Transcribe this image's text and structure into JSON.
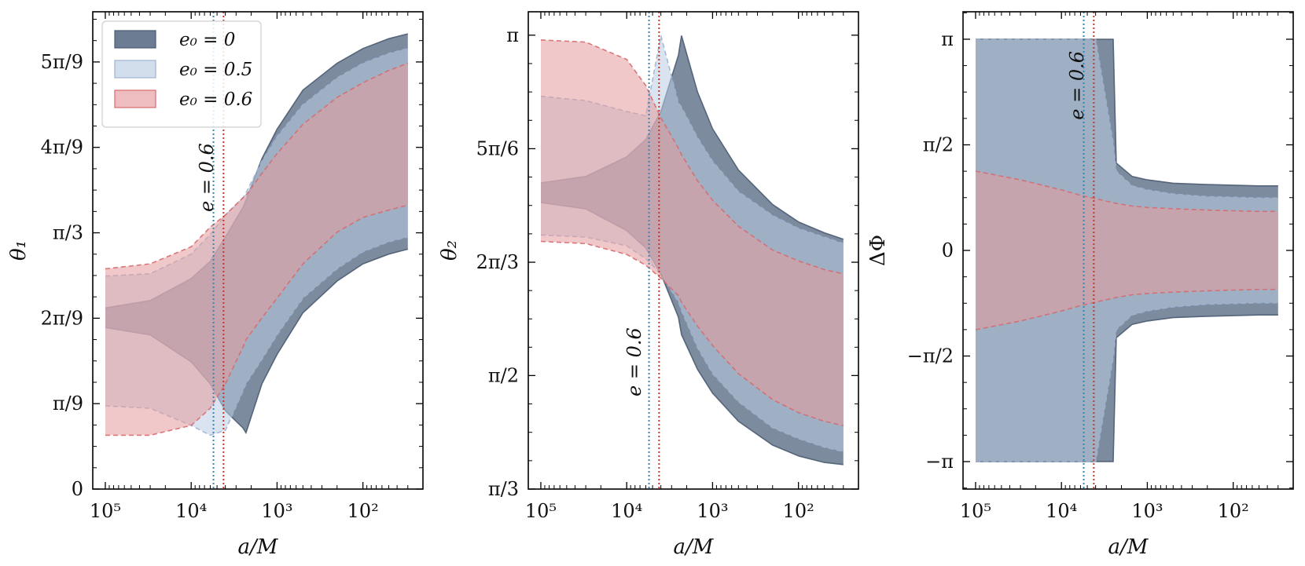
{
  "colors": {
    "e0_0": "#5c6e86",
    "e0_05": "#bccde3",
    "e0_06": "#e39a9c",
    "e0_0_edge": "#4b5c72",
    "e0_05_edge": "#9fb3d0",
    "e0_06_edge": "#d76a6f",
    "vline_blue": "#3a86b3",
    "vline_red": "#c0392b"
  },
  "legend": {
    "entries": [
      "e₀ = 0",
      "e₀ = 0.5",
      "e₀ = 0.6"
    ],
    "placement": "top-left of first panel"
  },
  "chart_data": [
    {
      "type": "area",
      "title": "",
      "xlabel": "a/M",
      "ylabel": "θ₁",
      "x_scale": "log, reversed",
      "xlim": [
        140000,
        20
      ],
      "ylim": [
        0,
        1.95
      ],
      "xticks": [
        100000,
        10000,
        1000,
        100
      ],
      "xtick_labels": [
        "10⁵",
        "10⁴",
        "10³",
        "10²"
      ],
      "yticks": [
        0,
        0.349,
        0.698,
        1.047,
        1.396,
        1.745
      ],
      "ytick_labels": [
        "0",
        "π/9",
        "2π/9",
        "π/3",
        "4π/9",
        "5π/9"
      ],
      "vlines": [
        {
          "x": 5500,
          "color": "blue"
        },
        {
          "x": 4200,
          "color": "red"
        }
      ],
      "annotation": "e = 0.6",
      "x": [
        100000,
        30000,
        10000,
        6000,
        4000,
        2500,
        2300,
        1500,
        1000,
        500,
        200,
        100,
        50,
        30
      ],
      "series": [
        {
          "name": "e₀ = 0",
          "upper": [
            0.74,
            0.77,
            0.86,
            0.93,
            1.03,
            1.15,
            1.18,
            1.35,
            1.47,
            1.63,
            1.74,
            1.8,
            1.84,
            1.86
          ],
          "lower": [
            0.66,
            0.63,
            0.52,
            0.43,
            0.32,
            0.25,
            0.23,
            0.43,
            0.55,
            0.72,
            0.85,
            0.92,
            0.96,
            0.98
          ]
        },
        {
          "name": "e₀ = 0.5",
          "upper": [
            0.87,
            0.88,
            0.96,
            1.04,
            1.12,
            1.19,
            1.21,
            1.34,
            1.44,
            1.57,
            1.68,
            1.74,
            1.78,
            1.8
          ],
          "lower": [
            0.34,
            0.33,
            0.26,
            0.22,
            0.24,
            0.4,
            0.43,
            0.53,
            0.63,
            0.78,
            0.9,
            0.97,
            1.01,
            1.03
          ]
        },
        {
          "name": "e₀ = 0.6",
          "upper": [
            0.9,
            0.92,
            0.99,
            1.07,
            1.12,
            1.19,
            1.2,
            1.29,
            1.37,
            1.49,
            1.6,
            1.66,
            1.71,
            1.74
          ],
          "lower": [
            0.22,
            0.22,
            0.26,
            0.33,
            0.43,
            0.58,
            0.61,
            0.7,
            0.78,
            0.92,
            1.05,
            1.11,
            1.14,
            1.16
          ]
        }
      ]
    },
    {
      "type": "area",
      "title": "",
      "xlabel": "a/M",
      "ylabel": "θ₂",
      "x_scale": "log, reversed",
      "xlim": [
        140000,
        20
      ],
      "ylim": [
        1.047,
        3.25
      ],
      "xticks": [
        100000,
        10000,
        1000,
        100
      ],
      "xtick_labels": [
        "10⁵",
        "10⁴",
        "10³",
        "10²"
      ],
      "yticks": [
        1.047,
        1.571,
        2.094,
        2.618,
        3.142
      ],
      "ytick_labels": [
        "π/3",
        "π/2",
        "2π/3",
        "5π/6",
        "π"
      ],
      "vlines": [
        {
          "x": 5500,
          "color": "blue"
        },
        {
          "x": 4200,
          "color": "red"
        }
      ],
      "annotation": "e = 0.6",
      "x": [
        100000,
        30000,
        10000,
        6000,
        4000,
        2500,
        2300,
        1500,
        1000,
        500,
        200,
        100,
        50,
        30
      ],
      "series": [
        {
          "name": "e₀ = 0",
          "upper": [
            2.46,
            2.49,
            2.58,
            2.66,
            2.79,
            3.05,
            3.14,
            2.88,
            2.71,
            2.52,
            2.36,
            2.28,
            2.23,
            2.2
          ],
          "lower": [
            2.37,
            2.34,
            2.24,
            2.16,
            2.04,
            1.84,
            1.76,
            1.6,
            1.49,
            1.36,
            1.25,
            1.2,
            1.17,
            1.16
          ],
          "ymax": 3.14
        },
        {
          "name": "e₀ = 0.5",
          "upper": [
            2.86,
            2.84,
            2.79,
            2.77,
            3.14,
            2.83,
            2.81,
            2.67,
            2.56,
            2.42,
            2.31,
            2.25,
            2.21,
            2.18
          ],
          "lower": [
            2.22,
            2.21,
            2.17,
            2.11,
            2.04,
            1.91,
            1.87,
            1.7,
            1.58,
            1.45,
            1.33,
            1.28,
            1.24,
            1.22
          ]
        },
        {
          "name": "e₀ = 0.6",
          "upper": [
            3.12,
            3.11,
            3.03,
            2.91,
            2.76,
            2.62,
            2.59,
            2.47,
            2.38,
            2.26,
            2.15,
            2.1,
            2.06,
            2.04
          ],
          "lower": [
            2.19,
            2.18,
            2.13,
            2.08,
            2.02,
            1.94,
            1.91,
            1.8,
            1.71,
            1.58,
            1.46,
            1.4,
            1.36,
            1.34
          ]
        }
      ]
    },
    {
      "type": "area",
      "title": "",
      "xlabel": "a/M",
      "ylabel": "ΔΦ",
      "x_scale": "log, reversed",
      "xlim": [
        140000,
        20
      ],
      "ylim": [
        -3.55,
        3.55
      ],
      "xticks": [
        100000,
        10000,
        1000,
        100
      ],
      "xtick_labels": [
        "10⁵",
        "10⁴",
        "10³",
        "10²"
      ],
      "yticks": [
        -3.1416,
        -1.5708,
        0,
        1.5708,
        3.1416
      ],
      "ytick_labels": [
        "−π",
        "−π/2",
        "0",
        "π/2",
        "π"
      ],
      "vlines": [
        {
          "x": 5500,
          "color": "blue"
        },
        {
          "x": 4200,
          "color": "red"
        }
      ],
      "annotation": "e = 0.6",
      "x": [
        100000,
        30000,
        10000,
        6000,
        4000,
        2500,
        2300,
        1500,
        1000,
        500,
        200,
        100,
        50,
        30
      ],
      "series": [
        {
          "name": "e₀ = 0",
          "upper": [
            3.14,
            3.14,
            3.14,
            3.14,
            3.14,
            3.14,
            1.3,
            1.1,
            1.05,
            1.0,
            0.98,
            0.97,
            0.96,
            0.96
          ],
          "lower": [
            -3.14,
            -3.14,
            -3.14,
            -3.14,
            -3.14,
            -3.14,
            -1.3,
            -1.1,
            -1.05,
            -1.0,
            -0.98,
            -0.97,
            -0.96,
            -0.96
          ]
        },
        {
          "name": "e₀ = 0.5",
          "upper": [
            3.14,
            3.14,
            3.14,
            3.14,
            3.14,
            1.6,
            1.18,
            0.96,
            0.9,
            0.84,
            0.8,
            0.79,
            0.78,
            0.78
          ],
          "lower": [
            -3.14,
            -3.14,
            -3.14,
            -3.14,
            -3.14,
            -1.6,
            -1.18,
            -0.96,
            -0.9,
            -0.84,
            -0.8,
            -0.79,
            -0.78,
            -0.78
          ]
        },
        {
          "name": "e₀ = 0.6",
          "upper": [
            1.18,
            1.05,
            0.9,
            0.82,
            0.77,
            0.71,
            0.7,
            0.66,
            0.64,
            0.62,
            0.6,
            0.59,
            0.58,
            0.58
          ],
          "lower": [
            -1.18,
            -1.05,
            -0.9,
            -0.82,
            -0.77,
            -0.71,
            -0.7,
            -0.66,
            -0.64,
            -0.62,
            -0.6,
            -0.59,
            -0.58,
            -0.58
          ]
        }
      ]
    }
  ]
}
